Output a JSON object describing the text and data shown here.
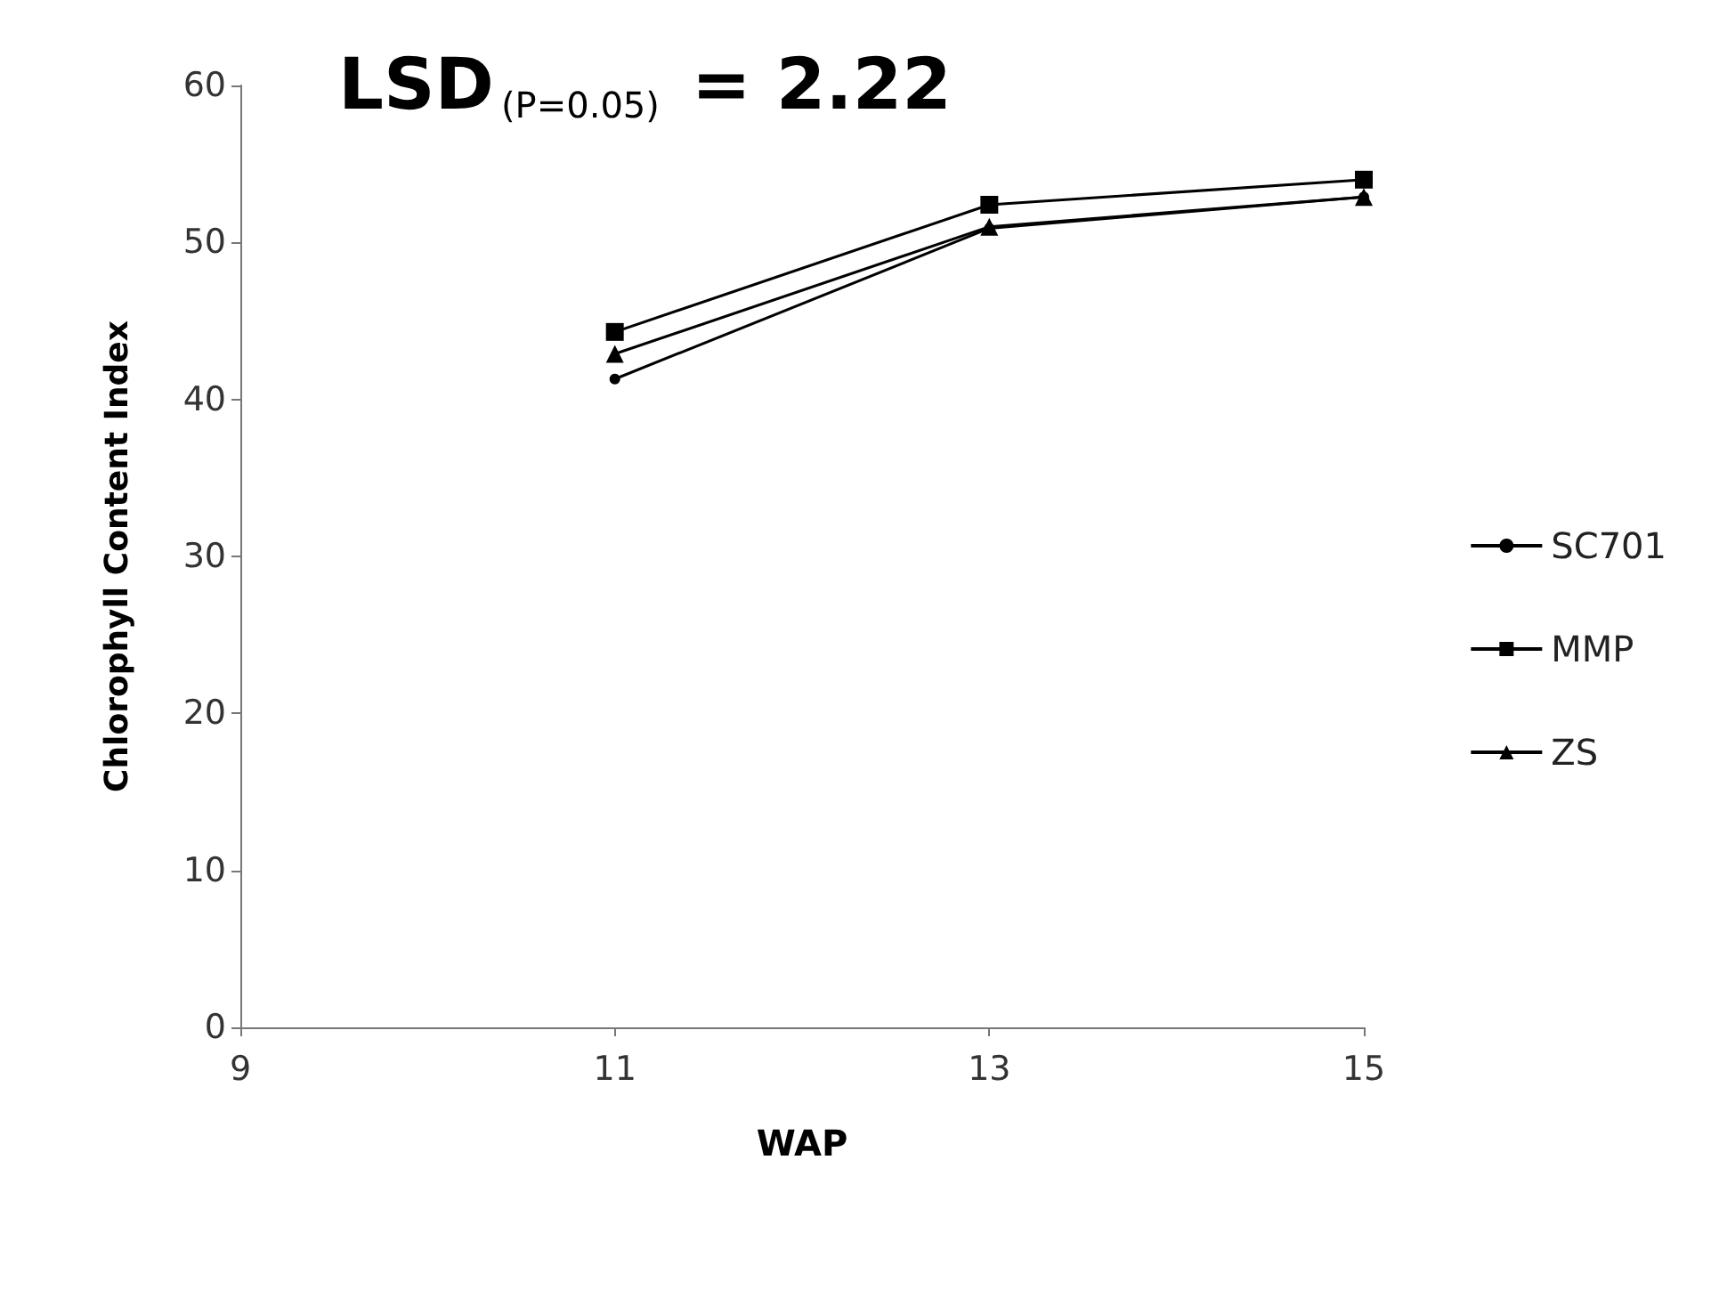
{
  "chart_data": {
    "type": "line",
    "xlabel": "WAP",
    "ylabel": "Chlorophyll Content Index",
    "annotations": [
      "LSD$_{(P=0.05)}$ = 2.22"
    ],
    "x": [
      11,
      13,
      15
    ],
    "xlim": [
      9,
      15
    ],
    "xticks": [
      9,
      11,
      13,
      15
    ],
    "ylim": [
      0,
      60
    ],
    "yticks": [
      0,
      10,
      20,
      30,
      40,
      50,
      60
    ],
    "series": [
      {
        "name": "SC701",
        "color": "#000000",
        "marker": "circle",
        "values": [
          41.3,
          50.9,
          52.9
        ]
      },
      {
        "name": "MMP",
        "color": "#000000",
        "marker": "square",
        "values": [
          44.3,
          52.4,
          54.0
        ]
      },
      {
        "name": "ZS",
        "color": "#000000",
        "marker": "triangle",
        "values": [
          42.9,
          51.0,
          52.9
        ]
      }
    ],
    "grid": false,
    "legend": "right",
    "line_style": "solid"
  }
}
